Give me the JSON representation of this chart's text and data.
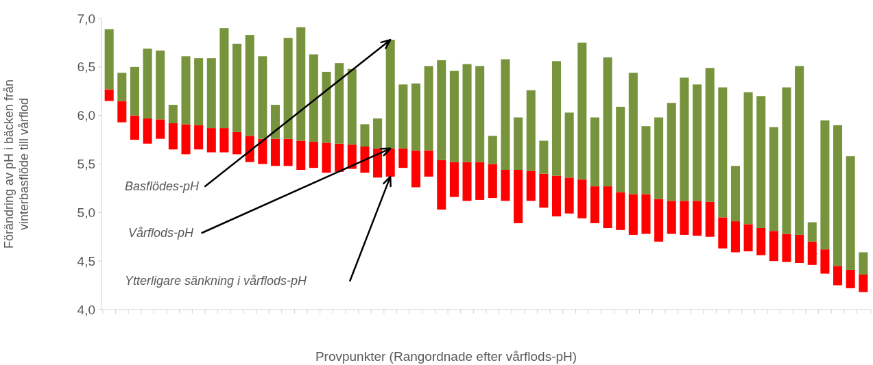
{
  "chart_data": {
    "type": "bar",
    "ylabel": "Förändring av pH i bäcken från\nvinterbasflöde till vårflod",
    "xlabel": "Provpunkter (Rangordnade efter vårflods-pH)",
    "categories": [
      null,
      null,
      null,
      null,
      null,
      null,
      null,
      null,
      null,
      null,
      null,
      null,
      null,
      null,
      null,
      null,
      null,
      null,
      null,
      null,
      null,
      null,
      null,
      null,
      null,
      null,
      null,
      null,
      null,
      null,
      null,
      null,
      null,
      null,
      null,
      null,
      null,
      null,
      null,
      null,
      null,
      null,
      null,
      null,
      null,
      null,
      null,
      null,
      null,
      null,
      null,
      null,
      null,
      null,
      null,
      null,
      null,
      null,
      null,
      null
    ],
    "series": [
      {
        "color": "#ff0000",
        "base": [
          6.15,
          5.93,
          5.75,
          5.71,
          5.76,
          5.65,
          5.6,
          5.65,
          5.62,
          5.62,
          5.6,
          5.52,
          5.5,
          5.48,
          5.48,
          5.44,
          5.46,
          5.41,
          5.42,
          5.45,
          5.41,
          5.36,
          5.37,
          5.46,
          5.26,
          5.37,
          5.03,
          5.16,
          5.12,
          5.13,
          5.15,
          5.12,
          4.89,
          5.12,
          5.05,
          4.96,
          4.99,
          4.94,
          4.89,
          4.84,
          4.82,
          4.77,
          4.78,
          4.7,
          4.78,
          4.77,
          4.76,
          4.75,
          4.63,
          4.59,
          4.6,
          4.56,
          4.5,
          4.49,
          4.48,
          4.46,
          4.37,
          4.25,
          4.22,
          4.18
        ],
        "values": [
          0.12,
          0.22,
          0.25,
          0.26,
          0.2,
          0.27,
          0.31,
          0.25,
          0.25,
          0.25,
          0.23,
          0.27,
          0.26,
          0.28,
          0.28,
          0.3,
          0.27,
          0.31,
          0.29,
          0.25,
          0.27,
          0.3,
          0.29,
          0.2,
          0.38,
          0.27,
          0.51,
          0.36,
          0.4,
          0.39,
          0.35,
          0.32,
          0.55,
          0.31,
          0.35,
          0.42,
          0.37,
          0.4,
          0.38,
          0.43,
          0.39,
          0.42,
          0.41,
          0.44,
          0.34,
          0.35,
          0.36,
          0.36,
          0.32,
          0.32,
          0.28,
          0.28,
          0.31,
          0.29,
          0.29,
          0.24,
          0.25,
          0.2,
          0.19,
          0.18
        ]
      },
      {
        "color": "#77933c",
        "base": [
          6.27,
          6.15,
          6.0,
          5.97,
          5.96,
          5.92,
          5.91,
          5.9,
          5.87,
          5.87,
          5.83,
          5.79,
          5.76,
          5.76,
          5.76,
          5.74,
          5.73,
          5.72,
          5.71,
          5.7,
          5.68,
          5.66,
          5.66,
          5.66,
          5.64,
          5.64,
          5.54,
          5.52,
          5.52,
          5.52,
          5.5,
          5.44,
          5.44,
          5.43,
          5.4,
          5.38,
          5.36,
          5.34,
          5.27,
          5.27,
          5.21,
          5.19,
          5.19,
          5.14,
          5.12,
          5.12,
          5.12,
          5.11,
          4.95,
          4.91,
          4.88,
          4.84,
          4.81,
          4.78,
          4.77,
          4.7,
          4.62,
          4.45,
          4.41,
          4.36
        ],
        "values": [
          0.62,
          0.29,
          0.5,
          0.72,
          0.71,
          0.19,
          0.7,
          0.69,
          0.72,
          1.03,
          0.91,
          1.04,
          0.85,
          0.35,
          1.04,
          1.17,
          0.9,
          0.73,
          0.83,
          0.78,
          0.23,
          0.31,
          1.12,
          0.66,
          0.69,
          0.87,
          1.03,
          0.94,
          1.01,
          0.99,
          0.29,
          1.14,
          0.54,
          0.83,
          0.34,
          1.18,
          0.67,
          1.41,
          0.71,
          1.33,
          0.88,
          1.25,
          0.7,
          0.84,
          1.01,
          1.27,
          1.2,
          1.38,
          1.34,
          0.57,
          1.36,
          1.36,
          1.07,
          1.51,
          1.74,
          0.2,
          1.33,
          1.45,
          1.17,
          0.23
        ]
      }
    ],
    "ylim": [
      4,
      7
    ],
    "yticks": [
      {
        "value": 4,
        "label": "4,0"
      },
      {
        "value": 4.5,
        "label": "4,5"
      },
      {
        "value": 5,
        "label": "5,0"
      },
      {
        "value": 5.5,
        "label": "5,5"
      },
      {
        "value": 6,
        "label": "6,0"
      },
      {
        "value": 6.5,
        "label": "6,5"
      },
      {
        "value": 7,
        "label": "7,0"
      }
    ],
    "annotations": [
      "Basflödes-pH",
      "Vårflods-pH",
      "Ytterligare sänkning i vårflods-pH"
    ]
  }
}
